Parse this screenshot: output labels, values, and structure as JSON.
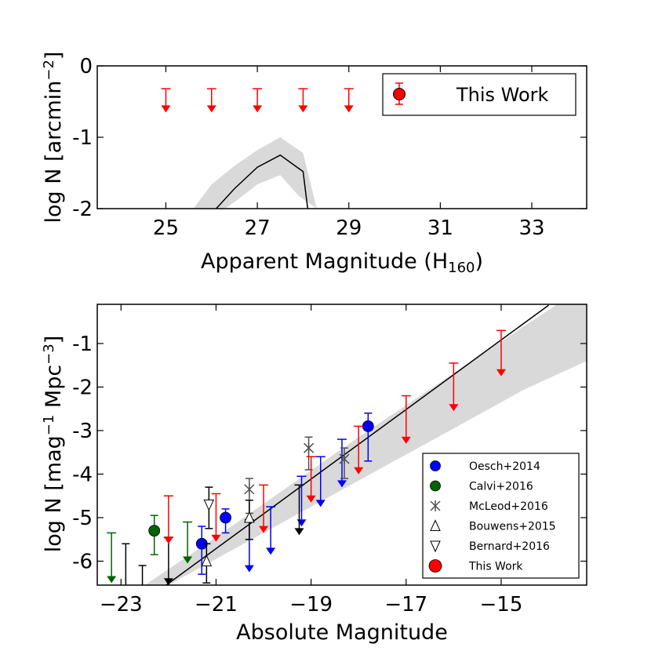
{
  "chart_data": [
    {
      "type": "scatter",
      "title": "",
      "xlabel": "Apparent Magnitude (H",
      "xlabel_sub": "160",
      "xlabel_close": ")",
      "ylabel": "log N [arcmin",
      "ylabel_sup": "−2",
      "ylabel_close": "]",
      "xlim": [
        23.5,
        34.2
      ],
      "ylim": [
        -2,
        0
      ],
      "xticks": [
        {
          "v": 25,
          "label": "25"
        },
        {
          "v": 27,
          "label": "27"
        },
        {
          "v": 29,
          "label": "29"
        },
        {
          "v": 31,
          "label": "31"
        },
        {
          "v": 33,
          "label": "33"
        }
      ],
      "yticks": [
        {
          "v": 0,
          "label": "0"
        },
        {
          "v": -1,
          "label": "-1"
        },
        {
          "v": -2,
          "label": "-2"
        }
      ],
      "model_line": {
        "x": [
          26.1,
          26.5,
          27.0,
          27.5,
          28.0,
          28.1
        ],
        "y": [
          -2.0,
          -1.72,
          -1.42,
          -1.25,
          -1.48,
          -2.0
        ]
      },
      "model_band": {
        "upper": {
          "x": [
            25.6,
            26.0,
            26.5,
            27.0,
            27.5,
            28.0,
            28.3
          ],
          "y": [
            -2.0,
            -1.66,
            -1.4,
            -1.18,
            -1.0,
            -1.22,
            -2.0
          ]
        },
        "lower": {
          "x": [
            26.3,
            26.6,
            27.0,
            27.5,
            27.9,
            28.3
          ],
          "y": [
            -2.0,
            -1.86,
            -1.66,
            -1.53,
            -1.82,
            -2.0
          ]
        }
      },
      "series": [
        {
          "name": "This Work",
          "color": "#ff0000",
          "upper_limits": {
            "x": [
              25,
              26,
              27,
              28,
              29
            ],
            "y_top": [
              -0.32,
              -0.32,
              -0.32,
              -0.32,
              -0.32
            ],
            "y_limit": [
              -0.62,
              -0.62,
              -0.62,
              -0.62,
              -0.62
            ]
          }
        }
      ],
      "legend": {
        "location": "top-right",
        "entries": [
          {
            "label": "This Work",
            "color": "#ff0000",
            "marker": "circle-errorbar"
          }
        ]
      }
    },
    {
      "type": "scatter",
      "title": "",
      "xlabel": "Absolute Magnitude",
      "ylabel": "log N [mag",
      "ylabel_sup1": "−1",
      "ylabel_mid": " Mpc",
      "ylabel_sup2": "−3",
      "ylabel_close": "]",
      "xlim": [
        -23.5,
        -13.2
      ],
      "ylim": [
        -6.55,
        -0.1
      ],
      "xticks": [
        {
          "v": -23,
          "label": "−23"
        },
        {
          "v": -21,
          "label": "−21"
        },
        {
          "v": -19,
          "label": "−19"
        },
        {
          "v": -17,
          "label": "−17"
        },
        {
          "v": -15,
          "label": "−15"
        }
      ],
      "yticks": [
        {
          "v": -1,
          "label": "-1"
        },
        {
          "v": -2,
          "label": "-2"
        },
        {
          "v": -3,
          "label": "-3"
        },
        {
          "v": -4,
          "label": "-4"
        },
        {
          "v": -5,
          "label": "-5"
        },
        {
          "v": -6,
          "label": "-6"
        }
      ],
      "model_line": {
        "x": [
          -22.05,
          -14.0
        ],
        "y": [
          -6.55,
          -0.12
        ]
      },
      "model_band": {
        "upper": {
          "x": [
            -22.5,
            -21.0,
            -19.5,
            -18.0,
            -16.5,
            -15.0,
            -13.2
          ],
          "y": [
            -6.55,
            -5.45,
            -4.3,
            -3.15,
            -2.05,
            -0.95,
            0.35
          ]
        },
        "lower": {
          "x": [
            -22.0,
            -20.5,
            -19.0,
            -17.5,
            -16.0,
            -14.5,
            -13.2
          ],
          "y": [
            -6.55,
            -5.65,
            -4.75,
            -3.85,
            -2.95,
            -2.05,
            -1.4
          ]
        }
      },
      "series": [
        {
          "name": "Oesch+2014",
          "color": "#0000ff",
          "points": [
            {
              "x": -21.3,
              "y": -5.6,
              "ylo": -6.3,
              "yhi": -5.2
            },
            {
              "x": -20.8,
              "y": -5.0,
              "ylo": -5.35,
              "yhi": -4.8
            },
            {
              "x": -17.8,
              "y": -2.9,
              "ylo": -3.7,
              "yhi": -2.6
            }
          ],
          "upper_limits": [
            {
              "x": -20.3,
              "top": -5.05,
              "lim": -6.2
            },
            {
              "x": -19.85,
              "top": -4.75,
              "lim": -5.8
            },
            {
              "x": -19.2,
              "top": -4.05,
              "lim": -5.15
            },
            {
              "x": -18.8,
              "top": -3.6,
              "lim": -4.7
            },
            {
              "x": -18.35,
              "top": -3.2,
              "lim": -4.25
            }
          ]
        },
        {
          "name": "Calvi+2016",
          "color": "#006400",
          "points": [
            {
              "x": -22.3,
              "y": -5.3,
              "ylo": -5.85,
              "yhi": -4.95
            }
          ],
          "upper_limits": [
            {
              "x": -23.2,
              "top": -5.35,
              "lim": -6.45
            },
            {
              "x": -21.6,
              "top": -5.1,
              "lim": -6.0
            }
          ]
        },
        {
          "name": "McLeod+2016",
          "color": "#505050",
          "points": [
            {
              "x": -20.3,
              "y": -4.35,
              "ylo": -4.9,
              "yhi": -4.1
            },
            {
              "x": -19.05,
              "y": -3.4,
              "ylo": -3.9,
              "yhi": -3.15
            },
            {
              "x": -18.3,
              "y": -3.65,
              "ylo": -4.1,
              "yhi": -3.4
            }
          ]
        },
        {
          "name": "Bouwens+2015",
          "color": "#000000",
          "points": [
            {
              "x": -21.2,
              "y": -6.0,
              "ylo": -6.5,
              "yhi": -5.6
            },
            {
              "x": -20.3,
              "y": -5.0,
              "ylo": -5.5,
              "yhi": -4.6
            }
          ],
          "upper_limits": [
            {
              "x": -22.0,
              "top": -5.45,
              "lim": -6.5
            },
            {
              "x": -19.25,
              "top": -4.25,
              "lim": -5.35
            }
          ]
        },
        {
          "name": "Bernard+2016",
          "color": "#000000",
          "points": [
            {
              "x": -21.15,
              "y": -4.7,
              "ylo": -5.25,
              "yhi": -4.3
            }
          ]
        },
        {
          "name": "This Work",
          "color": "#ff0000",
          "upper_limits": [
            {
              "x": -22.0,
              "top": -4.5,
              "lim": -5.55
            },
            {
              "x": -21.0,
              "top": -4.45,
              "lim": -5.5
            },
            {
              "x": -20.0,
              "top": -4.25,
              "lim": -5.3
            },
            {
              "x": -19.0,
              "top": -3.6,
              "lim": -4.6
            },
            {
              "x": -18.0,
              "top": -2.9,
              "lim": -3.95
            },
            {
              "x": -17.0,
              "top": -2.2,
              "lim": -3.25
            },
            {
              "x": -16.0,
              "top": -1.45,
              "lim": -2.5
            },
            {
              "x": -15.0,
              "top": -0.7,
              "lim": -1.7
            }
          ]
        }
      ],
      "extra_lines": [
        {
          "x": -22.9,
          "ylo": -6.55,
          "yhi": -5.6
        },
        {
          "x": -22.55,
          "ylo": -6.55,
          "yhi": -6.1
        }
      ],
      "legend": {
        "location": "lower-right",
        "entries": [
          {
            "label": "Oesch+2014",
            "color": "#0000ff",
            "marker": "circle"
          },
          {
            "label": "Calvi+2016",
            "color": "#006400",
            "marker": "circle"
          },
          {
            "label": "McLeod+2016",
            "color": "#505050",
            "marker": "asterisk"
          },
          {
            "label": "Bouwens+2015",
            "color": "#000000",
            "marker": "triangle-up"
          },
          {
            "label": "Bernard+2016",
            "color": "#000000",
            "marker": "triangle-down"
          },
          {
            "label": "This Work",
            "color": "#ff0000",
            "marker": "circle"
          }
        ]
      }
    }
  ]
}
